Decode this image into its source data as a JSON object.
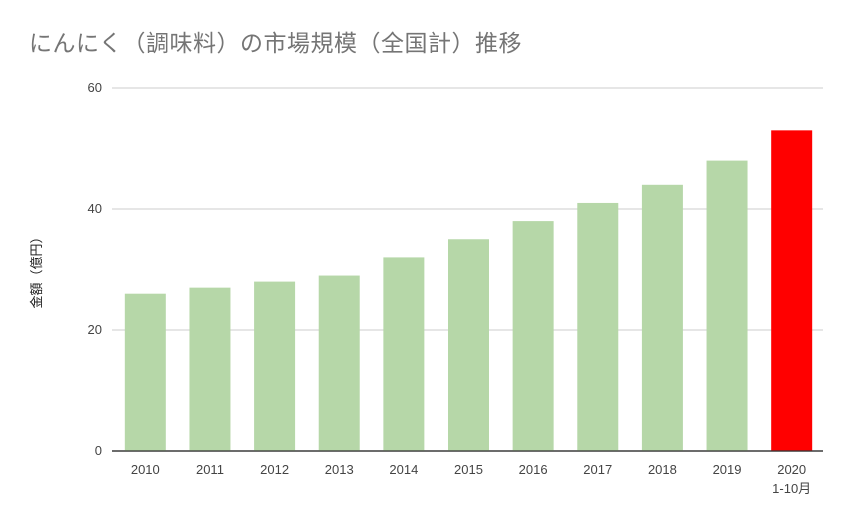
{
  "chart_data": {
    "type": "bar",
    "title": "にんにく（調味料）の市場規模（全国計）推移",
    "xlabel": "",
    "ylabel": "金額（億円）",
    "categories": [
      "2010",
      "2011",
      "2012",
      "2013",
      "2014",
      "2015",
      "2016",
      "2017",
      "2018",
      "2019",
      "2020\n1-10月"
    ],
    "values": [
      26,
      27,
      28,
      29,
      32,
      35,
      38,
      41,
      44,
      48,
      53
    ],
    "ylim": [
      0,
      60
    ],
    "yticks": [
      0,
      20,
      40,
      60
    ],
    "grid": true,
    "legend": "none",
    "colors": {
      "default_bar": "#b6d7a8",
      "highlight_bar": "#ff0000",
      "highlight_index": 10
    }
  }
}
